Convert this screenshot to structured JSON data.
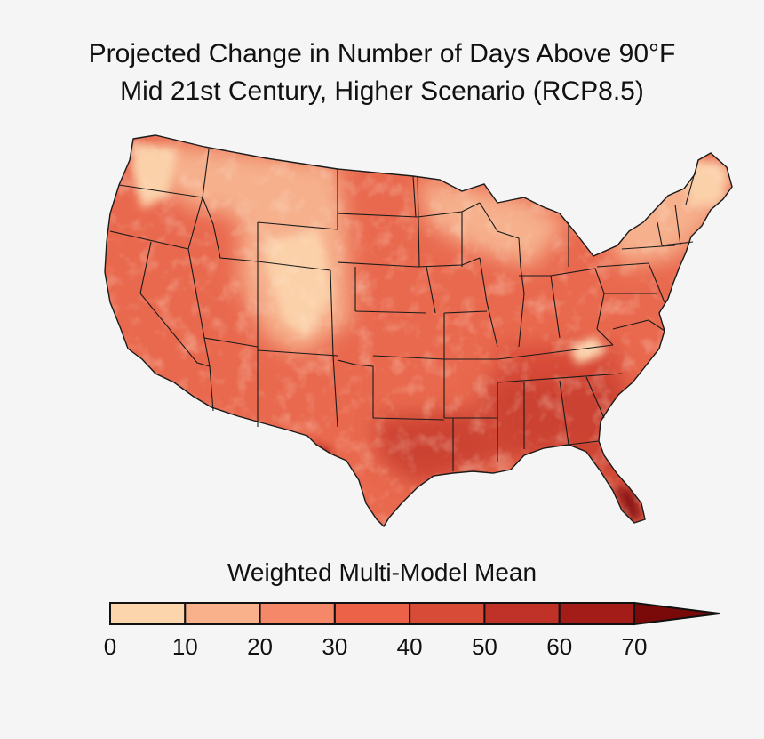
{
  "title_line1": "Projected Change in Number of Days Above 90°F",
  "title_line2": "Mid 21st Century, Higher Scenario (RCP8.5)",
  "legend": {
    "title": "Weighted Multi-Model Mean",
    "ticks": [
      "0",
      "10",
      "20",
      "30",
      "40",
      "50",
      "60",
      "70"
    ],
    "bins": [
      {
        "from": 0,
        "to": 10,
        "color": "#fcd5ad"
      },
      {
        "from": 10,
        "to": 20,
        "color": "#f9b18b"
      },
      {
        "from": 20,
        "to": 30,
        "color": "#f48868"
      },
      {
        "from": 30,
        "to": 40,
        "color": "#ec6248"
      },
      {
        "from": 40,
        "to": 50,
        "color": "#d84c37"
      },
      {
        "from": 50,
        "to": 60,
        "color": "#c03128"
      },
      {
        "from": 60,
        "to": 70,
        "color": "#a41c18"
      }
    ],
    "overflow_color": "#7a0a0a",
    "overflow_direction": "extends above 70"
  },
  "map_colors": {
    "base": "#e9694e",
    "cool": "#f6b08c",
    "coolest": "#fbd1aa",
    "hot": "#cc4330",
    "hottest": "#8e1414",
    "borders": "#1a1a1a"
  }
}
